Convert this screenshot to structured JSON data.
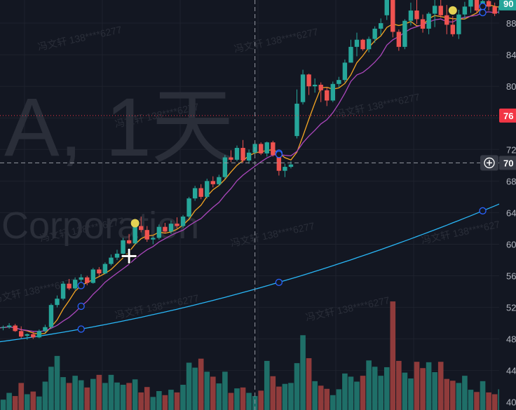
{
  "chart_data": {
    "type": "candlestick",
    "watermark": {
      "symbol_line": "A, 1天",
      "name_line": "Corporation",
      "user_tag": "冯文轩 138****6277"
    },
    "y_axis": {
      "ylim": [
        39,
        92
      ],
      "tick_values": [
        40,
        44,
        48,
        52,
        56,
        60,
        64,
        68,
        72,
        76,
        80,
        84,
        88
      ],
      "tick_labels": [
        "40",
        "44",
        "48",
        "52",
        "56",
        "60",
        "64",
        "68",
        "72",
        "76",
        "80",
        "84",
        "88"
      ]
    },
    "price_badges": [
      {
        "label": "76",
        "color": "#f23645"
      },
      {
        "label": "70",
        "color": "#363a45"
      },
      {
        "label": "90",
        "color": "#26a69a"
      }
    ],
    "crosshair": {
      "price": 70.3
    },
    "last_price_line": 76.3,
    "colors": {
      "up": "#26a69a",
      "down": "#ef5350",
      "ma_fast": "#f5a623",
      "ma_mid": "#ab47bc",
      "ma_slow": "#29b6f6",
      "marker": "#e4d354"
    },
    "candles": [
      [
        49.6,
        49.8,
        49.2,
        49.4
      ],
      [
        49.4,
        49.7,
        49.1,
        49.5
      ],
      [
        49.5,
        50.0,
        49.3,
        49.7
      ],
      [
        49.7,
        49.9,
        48.9,
        49.0
      ],
      [
        49.0,
        49.6,
        48.1,
        48.3
      ],
      [
        48.4,
        48.7,
        47.9,
        48.6
      ],
      [
        48.6,
        48.9,
        48.0,
        48.2
      ],
      [
        48.2,
        49.2,
        48.1,
        49.0
      ],
      [
        49.0,
        49.8,
        48.8,
        49.5
      ],
      [
        49.5,
        52.5,
        49.3,
        52.3
      ],
      [
        52.3,
        53.5,
        52.0,
        53.1
      ],
      [
        53.1,
        55.3,
        52.9,
        55.0
      ],
      [
        55.0,
        55.6,
        54.2,
        54.4
      ],
      [
        54.4,
        55.8,
        54.2,
        55.5
      ],
      [
        55.5,
        56.2,
        55.1,
        55.8
      ],
      [
        55.8,
        56.0,
        54.8,
        55.1
      ],
      [
        55.1,
        57.0,
        55.0,
        56.8
      ],
      [
        56.8,
        57.1,
        56.0,
        56.3
      ],
      [
        56.3,
        57.7,
        56.2,
        57.5
      ],
      [
        57.5,
        58.7,
        57.3,
        58.3
      ],
      [
        58.3,
        59.3,
        58.0,
        58.8
      ],
      [
        58.8,
        60.8,
        58.7,
        60.5
      ],
      [
        60.5,
        61.3,
        60.0,
        60.1
      ],
      [
        60.1,
        62.6,
        60.0,
        62.3
      ],
      [
        62.3,
        63.5,
        61.5,
        61.8
      ],
      [
        61.8,
        62.3,
        60.3,
        60.6
      ],
      [
        60.6,
        61.0,
        60.0,
        60.8
      ],
      [
        60.8,
        62.5,
        60.6,
        62.2
      ],
      [
        62.2,
        62.7,
        61.4,
        61.6
      ],
      [
        61.6,
        63.0,
        61.3,
        62.6
      ],
      [
        62.6,
        63.4,
        62.0,
        62.3
      ],
      [
        62.3,
        63.7,
        62.1,
        63.5
      ],
      [
        63.5,
        66.0,
        63.3,
        65.8
      ],
      [
        65.8,
        67.4,
        65.5,
        67.1
      ],
      [
        67.1,
        67.6,
        65.7,
        66.0
      ],
      [
        66.0,
        68.3,
        65.8,
        68.0
      ],
      [
        68.0,
        68.6,
        67.2,
        67.6
      ],
      [
        67.6,
        68.8,
        67.4,
        68.5
      ],
      [
        68.5,
        71.3,
        68.3,
        71.0
      ],
      [
        71.0,
        71.9,
        70.4,
        70.7
      ],
      [
        70.7,
        72.5,
        70.5,
        72.2
      ],
      [
        72.2,
        73.2,
        70.3,
        70.6
      ],
      [
        70.6,
        72.0,
        70.2,
        71.6
      ],
      [
        71.6,
        72.9,
        71.4,
        72.7
      ],
      [
        72.7,
        72.9,
        71.3,
        71.5
      ],
      [
        71.5,
        73.0,
        71.1,
        72.9
      ],
      [
        72.9,
        73.1,
        71.1,
        71.3
      ],
      [
        71.3,
        72.0,
        68.7,
        69.3
      ],
      [
        69.3,
        70.2,
        68.5,
        69.8
      ],
      [
        69.8,
        70.5,
        69.6,
        70.1
      ],
      [
        73.7,
        79.6,
        73.4,
        77.8
      ],
      [
        78.0,
        82.1,
        77.7,
        81.5
      ],
      [
        81.5,
        81.6,
        78.9,
        80.0
      ],
      [
        80.0,
        81.0,
        79.2,
        80.2
      ],
      [
        80.2,
        80.5,
        78.0,
        79.5
      ],
      [
        79.5,
        79.9,
        77.5,
        78.2
      ],
      [
        78.2,
        80.6,
        78.0,
        80.3
      ],
      [
        80.3,
        81.2,
        79.9,
        80.8
      ],
      [
        80.8,
        83.4,
        80.5,
        83.0
      ],
      [
        83.0,
        85.9,
        83.0,
        85.0
      ],
      [
        85.0,
        86.8,
        83.8,
        85.9
      ],
      [
        85.9,
        86.0,
        84.5,
        84.7
      ],
      [
        84.7,
        86.3,
        84.3,
        86.0
      ],
      [
        86.0,
        87.6,
        85.5,
        87.3
      ],
      [
        87.3,
        88.6,
        86.5,
        88.0
      ],
      [
        89.0,
        91.8,
        88.4,
        91.3
      ],
      [
        91.3,
        91.6,
        86.2,
        86.9
      ],
      [
        86.9,
        87.2,
        84.5,
        85.0
      ],
      [
        85.0,
        88.5,
        84.7,
        88.3
      ],
      [
        88.3,
        90.6,
        87.7,
        89.6
      ],
      [
        89.6,
        91.5,
        87.9,
        88.5
      ],
      [
        88.5,
        89.1,
        86.8,
        87.3
      ],
      [
        87.3,
        89.4,
        86.6,
        89.2
      ],
      [
        89.2,
        91.2,
        87.5,
        90.2
      ],
      [
        90.2,
        91.0,
        88.7,
        89.0
      ],
      [
        89.0,
        90.3,
        86.6,
        87.8
      ],
      [
        87.8,
        88.9,
        86.3,
        86.6
      ],
      [
        86.6,
        89.7,
        86.0,
        89.1
      ],
      [
        89.1,
        90.7,
        88.5,
        90.1
      ],
      [
        90.1,
        91.5,
        89.3,
        91.0
      ],
      [
        91.0,
        91.6,
        89.3,
        89.6
      ],
      [
        89.6,
        91.0,
        89.2,
        90.8
      ],
      [
        90.8,
        91.3,
        89.6,
        90.1
      ],
      [
        90.1,
        90.6,
        88.9,
        89.2
      ],
      [
        89.2,
        90.4,
        89.0,
        90.2
      ]
    ],
    "volume": [
      3.5,
      2.3,
      3.8,
      3.1,
      6.0,
      3.5,
      4.1,
      3.0,
      6.3,
      9.6,
      12.0,
      7.3,
      6.0,
      7.6,
      6.6,
      5.0,
      6.9,
      7.8,
      6.0,
      7.8,
      6.1,
      5.6,
      6.0,
      6.8,
      3.9,
      5.1,
      2.9,
      4.2,
      3.3,
      4.5,
      3.9,
      5.6,
      10.5,
      9.4,
      11.4,
      8.5,
      7.4,
      5.9,
      8.5,
      3.8,
      4.8,
      5.0,
      3.8,
      3.1,
      4.3,
      10.9,
      7.5,
      5.2,
      5.8,
      6.0,
      10.4,
      16.6,
      11.5,
      6.4,
      5.4,
      4.7,
      3.3,
      4.6,
      8.1,
      7.4,
      6.3,
      7.6,
      11.0,
      9.6,
      7.6,
      9.5,
      24.1,
      10.9,
      8.3,
      7.0,
      10.7,
      9.3,
      10.6,
      8.4,
      10.7,
      6.9,
      6.5,
      6.0,
      7.6,
      4.5,
      4.0,
      6.4,
      3.9,
      3.5,
      4.6
    ],
    "vol_max": 28
  }
}
